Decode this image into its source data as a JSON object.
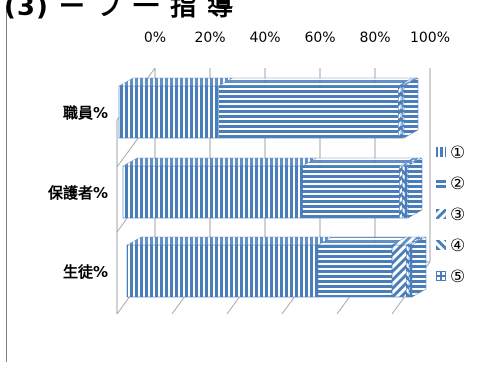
{
  "title": "(3) ー フ 一 指 導",
  "chart_data": {
    "type": "bar",
    "subtype": "100% stacked horizontal 3D",
    "title": "",
    "xlabel": "",
    "ylabel": "",
    "x_ticks": [
      "0%",
      "20%",
      "40%",
      "60%",
      "80%",
      "100%"
    ],
    "xlim": [
      0,
      100
    ],
    "grid": true,
    "legend_position": "right",
    "categories": [
      "職員%",
      "保護者%",
      "生徒%"
    ],
    "series": [
      {
        "name": "①",
        "values": [
          35,
          63,
          67
        ]
      },
      {
        "name": "②",
        "values": [
          63,
          34,
          26
        ]
      },
      {
        "name": "③",
        "values": [
          1,
          1,
          5
        ]
      },
      {
        "name": "④",
        "values": [
          0.5,
          1,
          1
        ]
      },
      {
        "name": "⑤",
        "values": [
          0.5,
          1,
          1
        ]
      }
    ],
    "colors": {
      "stripe": "#4a7ebb",
      "background": "#ffffff",
      "grid": "#a6a6a6"
    }
  }
}
